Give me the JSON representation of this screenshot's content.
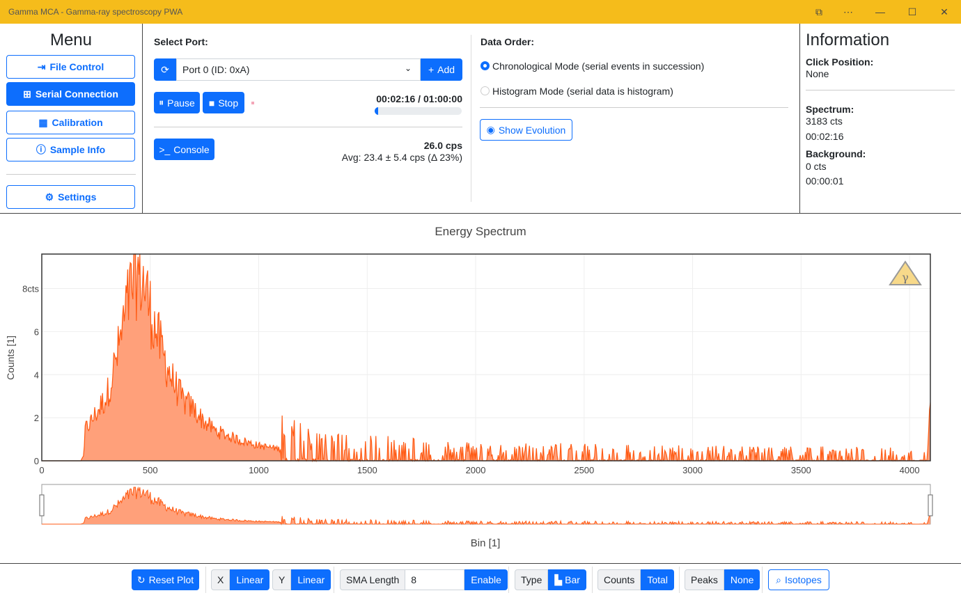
{
  "window": {
    "title": "Gamma MCA - Gamma-ray spectroscopy PWA"
  },
  "menu": {
    "title": "Menu",
    "items": [
      "File Control",
      "Serial Connection",
      "Calibration",
      "Sample Info"
    ],
    "settings": "Settings"
  },
  "serial": {
    "select_port_label": "Select Port:",
    "port_value": "Port 0 (ID: 0xA)",
    "add_label": "Add",
    "pause_label": "Pause",
    "stop_label": "Stop",
    "timer": "00:02:16 / 01:00:00",
    "progress": 0.038,
    "console_label": "Console",
    "cps": "26.0 cps",
    "avg": "Avg: 23.4 ± 5.4 cps (Δ 23%)"
  },
  "data_order": {
    "label": "Data Order:",
    "options": [
      "Chronological Mode (serial events in succession)",
      "Histogram Mode (serial data is histogram)"
    ],
    "selected": 0,
    "show_evolution": "Show Evolution"
  },
  "info": {
    "title": "Information",
    "click_position_label": "Click Position:",
    "click_position_value": "None",
    "spectrum_label": "Spectrum:",
    "spectrum_counts": "3183 cts",
    "spectrum_time": "00:02:16",
    "background_label": "Background:",
    "background_counts": "0 cts",
    "background_time": "00:00:01"
  },
  "chart_data": {
    "type": "area",
    "title": "Energy Spectrum",
    "xlabel": "Bin [1]",
    "ylabel": "Counts [1]",
    "xlim": [
      0,
      4096
    ],
    "ylim": [
      0,
      9.6
    ],
    "x_ticks": [
      "0",
      "500",
      "1000",
      "1500",
      "2000",
      "2500",
      "3000",
      "3500",
      "4000"
    ],
    "y_ticks": [
      "0",
      "2",
      "4",
      "6",
      "8cts"
    ],
    "grid": true,
    "color": "#ff5a13",
    "fill_color": "#ffa07a",
    "series": [
      {
        "x": [
          0,
          180,
          195,
          200,
          220,
          250,
          300,
          350,
          400,
          430,
          450,
          480,
          500,
          550,
          600,
          650,
          700,
          750,
          800,
          900,
          1000,
          1100,
          1200,
          1300,
          1500,
          1700,
          2000,
          2500,
          3000,
          3500,
          4000,
          4085,
          4090,
          4096
        ],
        "y": [
          0,
          0,
          0.3,
          1.5,
          1.7,
          2.2,
          3.0,
          5.0,
          7.5,
          8.6,
          8.7,
          8.0,
          7.0,
          5.2,
          3.8,
          2.8,
          2.4,
          1.8,
          1.4,
          1.0,
          0.7,
          0.55,
          0.45,
          0.35,
          0.3,
          0.28,
          0.22,
          0.2,
          0.18,
          0.17,
          0.15,
          0.15,
          2.2,
          2.7
        ]
      }
    ]
  },
  "toolbar": {
    "reset_plot": "Reset Plot",
    "x_label": "X",
    "x_value": "Linear",
    "y_label": "Y",
    "y_value": "Linear",
    "sma_label": "SMA Length",
    "sma_value": "8",
    "sma_button": "Enable",
    "type_label": "Type",
    "type_value": "Bar",
    "counts_label": "Counts",
    "counts_value": "Total",
    "peaks_label": "Peaks",
    "peaks_value": "None",
    "isotopes": "Isotopes"
  }
}
